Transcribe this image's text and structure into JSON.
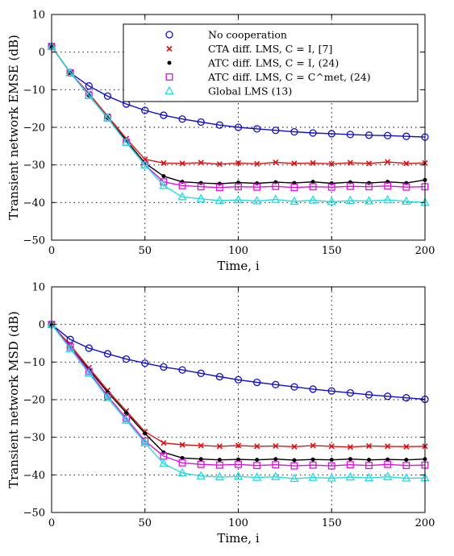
{
  "colors": {
    "no_coop": "#1010cc",
    "cta": "#dd1111",
    "atc_i": "#000000",
    "atc_met": "#dd11dd",
    "global": "#22dddd"
  },
  "legend_entries": [
    {
      "key": "no_coop",
      "label": "No cooperation",
      "marker": "circle"
    },
    {
      "key": "cta",
      "label": "CTA diff. LMS, C = I, [7]",
      "marker": "x"
    },
    {
      "key": "atc_i",
      "label": "ATC diff. LMS, C = I, (24)",
      "marker": "dot"
    },
    {
      "key": "atc_met",
      "label": "ATC diff. LMS, C = C^met, (24)",
      "marker": "square"
    },
    {
      "key": "global",
      "label": "Global LMS (13)",
      "marker": "triangle"
    }
  ],
  "chart_data": [
    {
      "type": "line",
      "title": "",
      "xlabel": "Time, i",
      "ylabel": "Transient network EMSE (dB)",
      "xlim": [
        0,
        200
      ],
      "ylim": [
        -50,
        10
      ],
      "xticks": [
        0,
        50,
        100,
        150,
        200
      ],
      "yticks": [
        10,
        0,
        -10,
        -20,
        -30,
        -40,
        -50
      ],
      "grid": true,
      "legend_position": "top-right",
      "x": [
        0,
        10,
        20,
        30,
        40,
        50,
        60,
        70,
        80,
        90,
        100,
        110,
        120,
        130,
        140,
        150,
        160,
        170,
        180,
        190,
        200
      ],
      "series": [
        {
          "key": "no_coop",
          "name": "No cooperation",
          "values": [
            1.5,
            -5.5,
            -9,
            -11.7,
            -13.8,
            -15.5,
            -16.8,
            -17.8,
            -18.6,
            -19.4,
            -20,
            -20.4,
            -20.8,
            -21.2,
            -21.5,
            -21.7,
            -21.9,
            -22.1,
            -22.2,
            -22.4,
            -22.6
          ]
        },
        {
          "key": "cta",
          "name": "CTA diff. LMS, C = I, [7]",
          "values": [
            1.5,
            -5.5,
            -11,
            -17,
            -23,
            -28.5,
            -29.5,
            -29.6,
            -29.4,
            -29.8,
            -29.5,
            -29.7,
            -29.3,
            -29.6,
            -29.5,
            -29.7,
            -29.4,
            -29.6,
            -29.2,
            -29.6,
            -29.5
          ]
        },
        {
          "key": "atc_i",
          "name": "ATC diff. LMS, C = I, (24)",
          "values": [
            1.5,
            -5.5,
            -11.5,
            -17.5,
            -23.5,
            -29.5,
            -33,
            -34.5,
            -34.8,
            -35,
            -34.7,
            -34.9,
            -34.6,
            -34.8,
            -34.5,
            -34.9,
            -34.6,
            -34.8,
            -34.5,
            -34.8,
            -34
          ]
        },
        {
          "key": "atc_met",
          "name": "ATC diff. LMS, C = C^met, (24)",
          "values": [
            1.5,
            -5.5,
            -11.5,
            -17.5,
            -24,
            -30,
            -34.5,
            -35.5,
            -35.8,
            -36,
            -35.8,
            -35.9,
            -35.7,
            -36,
            -35.8,
            -35.9,
            -35.7,
            -35.8,
            -35.6,
            -35.9,
            -35.8
          ]
        },
        {
          "key": "global",
          "name": "Global LMS (13)",
          "values": [
            1.5,
            -5.5,
            -11.5,
            -17.5,
            -24,
            -30,
            -35.5,
            -38.5,
            -39,
            -39.5,
            -39.3,
            -39.6,
            -39.2,
            -39.7,
            -39.4,
            -39.8,
            -39.5,
            -39.6,
            -39.3,
            -39.7,
            -40
          ]
        }
      ]
    },
    {
      "type": "line",
      "title": "",
      "xlabel": "Time, i",
      "ylabel": "Transient network MSD (dB)",
      "xlim": [
        0,
        200
      ],
      "ylim": [
        -50,
        10
      ],
      "xticks": [
        0,
        50,
        100,
        150,
        200
      ],
      "yticks": [
        10,
        0,
        -10,
        -20,
        -30,
        -40,
        -50
      ],
      "grid": true,
      "x": [
        0,
        10,
        20,
        30,
        40,
        50,
        60,
        70,
        80,
        90,
        100,
        110,
        120,
        130,
        140,
        150,
        160,
        170,
        180,
        190,
        200
      ],
      "series": [
        {
          "key": "no_coop",
          "name": "No cooperation",
          "values": [
            0,
            -4,
            -6.3,
            -7.8,
            -9.2,
            -10.3,
            -11.3,
            -12.1,
            -13,
            -13.9,
            -14.7,
            -15.4,
            -16,
            -16.6,
            -17.2,
            -17.7,
            -18.2,
            -18.7,
            -19.1,
            -19.5,
            -19.9
          ]
        },
        {
          "key": "cta",
          "name": "CTA diff. LMS, C = I, [7]",
          "values": [
            0,
            -5.5,
            -11.5,
            -17.5,
            -23,
            -28.5,
            -31.5,
            -32,
            -32.2,
            -32.4,
            -32.2,
            -32.4,
            -32.3,
            -32.5,
            -32.2,
            -32.4,
            -32.6,
            -32.3,
            -32.4,
            -32.5,
            -32.4
          ]
        },
        {
          "key": "atc_i",
          "name": "ATC diff. LMS, C = I, (24)",
          "values": [
            0,
            -6,
            -12,
            -18,
            -23.5,
            -29,
            -34,
            -35.5,
            -35.8,
            -36,
            -35.9,
            -36,
            -35.8,
            -36.1,
            -35.9,
            -36,
            -35.8,
            -36,
            -35.9,
            -36,
            -35.8
          ]
        },
        {
          "key": "atc_met",
          "name": "ATC diff. LMS, C = C^met, (24)",
          "values": [
            0,
            -6,
            -12.5,
            -19,
            -25,
            -31,
            -35,
            -36.8,
            -37.2,
            -37.4,
            -37.2,
            -37.5,
            -37.3,
            -37.6,
            -37.4,
            -37.6,
            -37.3,
            -37.5,
            -37.2,
            -37.5,
            -37.4
          ]
        },
        {
          "key": "global",
          "name": "Global LMS (13)",
          "values": [
            0,
            -6.5,
            -13,
            -19.5,
            -25.5,
            -31.5,
            -37,
            -39.5,
            -40.3,
            -40.6,
            -40.4,
            -40.7,
            -40.5,
            -41,
            -40.7,
            -40.9,
            -40.6,
            -40.8,
            -40.5,
            -40.9,
            -40.8
          ]
        }
      ]
    }
  ]
}
